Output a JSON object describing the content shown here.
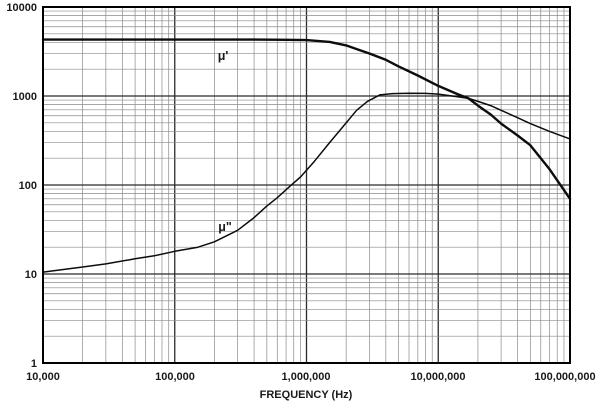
{
  "chart_data": {
    "type": "line",
    "title": "",
    "xlabel": "FREQUENCY (Hz)",
    "ylabel": "",
    "x_scale": "log",
    "y_scale": "log",
    "xlim": [
      10000,
      100000000
    ],
    "ylim": [
      1,
      10000
    ],
    "grid": "log-log with minor decade gridlines",
    "legend_position": "inline curve labels",
    "x_tick_labels": [
      "10,000",
      "100,000",
      "1,000,000",
      "10,000,000",
      "100,000,000"
    ],
    "y_tick_labels": [
      "10000",
      "1000",
      "100",
      "10",
      "1"
    ],
    "series": [
      {
        "name": "μ'",
        "description": "real permeability vs frequency",
        "points": [
          [
            10000,
            4300
          ],
          [
            50000,
            4300
          ],
          [
            100000,
            4300
          ],
          [
            200000,
            4300
          ],
          [
            400000,
            4300
          ],
          [
            700000,
            4280
          ],
          [
            1000000,
            4250
          ],
          [
            1500000,
            4050
          ],
          [
            2000000,
            3700
          ],
          [
            2500000,
            3300
          ],
          [
            3000000,
            3000
          ],
          [
            4000000,
            2550
          ],
          [
            5000000,
            2150
          ],
          [
            7000000,
            1700
          ],
          [
            10000000,
            1300
          ],
          [
            14000000,
            1050
          ],
          [
            17000000,
            940
          ],
          [
            20000000,
            780
          ],
          [
            25000000,
            620
          ],
          [
            30000000,
            490
          ],
          [
            40000000,
            360
          ],
          [
            50000000,
            280
          ],
          [
            70000000,
            150
          ],
          [
            100000000,
            70
          ]
        ]
      },
      {
        "name": "μ\"",
        "description": "imaginary (loss) permeability vs frequency",
        "points": [
          [
            10000,
            10.5
          ],
          [
            20000,
            12
          ],
          [
            30000,
            13
          ],
          [
            50000,
            14.8
          ],
          [
            70000,
            16
          ],
          [
            100000,
            18
          ],
          [
            150000,
            20
          ],
          [
            200000,
            23
          ],
          [
            300000,
            31
          ],
          [
            400000,
            43
          ],
          [
            500000,
            58
          ],
          [
            600000,
            72
          ],
          [
            750000,
            97
          ],
          [
            900000,
            123
          ],
          [
            1150000,
            185
          ],
          [
            1500000,
            300
          ],
          [
            1900000,
            455
          ],
          [
            2400000,
            690
          ],
          [
            2900000,
            870
          ],
          [
            3600000,
            1030
          ],
          [
            4500000,
            1065
          ],
          [
            6000000,
            1075
          ],
          [
            8000000,
            1070
          ],
          [
            10000000,
            1050
          ],
          [
            14000000,
            980
          ],
          [
            17000000,
            940
          ],
          [
            20000000,
            870
          ],
          [
            25000000,
            780
          ],
          [
            30000000,
            690
          ],
          [
            40000000,
            570
          ],
          [
            50000000,
            490
          ],
          [
            70000000,
            400
          ],
          [
            100000000,
            330
          ]
        ]
      }
    ]
  }
}
